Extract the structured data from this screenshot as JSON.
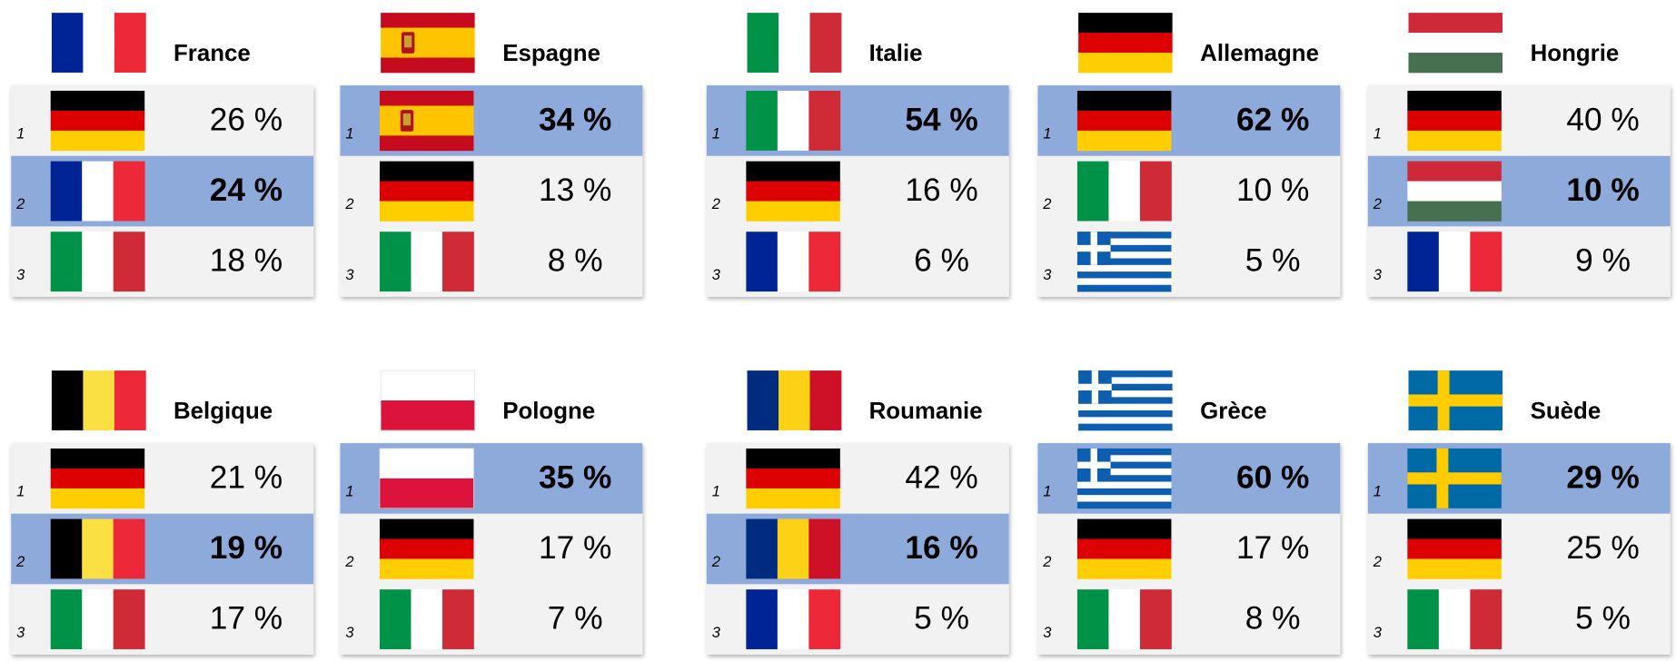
{
  "panels": [
    {
      "title": "France",
      "highlight": 1,
      "rows": [
        {
          "rank": "1",
          "value": "26 %"
        },
        {
          "rank": "2",
          "value": "24 %"
        },
        {
          "rank": "3",
          "value": "18 %"
        }
      ]
    },
    {
      "title": "Espagne",
      "highlight": 0,
      "rows": [
        {
          "rank": "1",
          "value": "34 %"
        },
        {
          "rank": "2",
          "value": "13 %"
        },
        {
          "rank": "3",
          "value": "8 %"
        }
      ]
    },
    {
      "title": "Italie",
      "highlight": 0,
      "rows": [
        {
          "rank": "1",
          "value": "54 %"
        },
        {
          "rank": "2",
          "value": "16 %"
        },
        {
          "rank": "3",
          "value": "6 %"
        }
      ]
    },
    {
      "title": "Allemagne",
      "highlight": 0,
      "rows": [
        {
          "rank": "1",
          "value": "62 %"
        },
        {
          "rank": "2",
          "value": "10 %"
        },
        {
          "rank": "3",
          "value": "5 %"
        }
      ]
    },
    {
      "title": "Hongrie",
      "highlight": 1,
      "rows": [
        {
          "rank": "1",
          "value": "40 %"
        },
        {
          "rank": "2",
          "value": "10 %"
        },
        {
          "rank": "3",
          "value": "9 %"
        }
      ]
    },
    {
      "title": "Belgique",
      "highlight": 1,
      "rows": [
        {
          "rank": "1",
          "value": "21 %"
        },
        {
          "rank": "2",
          "value": "19 %"
        },
        {
          "rank": "3",
          "value": "17 %"
        }
      ]
    },
    {
      "title": "Pologne",
      "highlight": 0,
      "rows": [
        {
          "rank": "1",
          "value": "35 %"
        },
        {
          "rank": "2",
          "value": "17 %"
        },
        {
          "rank": "3",
          "value": "7 %"
        }
      ]
    },
    {
      "title": "Roumanie",
      "highlight": 1,
      "rows": [
        {
          "rank": "1",
          "value": "42 %"
        },
        {
          "rank": "2",
          "value": "16 %"
        },
        {
          "rank": "3",
          "value": "5 %"
        }
      ]
    },
    {
      "title": "Grèce",
      "highlight": 0,
      "rows": [
        {
          "rank": "1",
          "value": "60 %"
        },
        {
          "rank": "2",
          "value": "17 %"
        },
        {
          "rank": "3",
          "value": "8 %"
        }
      ]
    },
    {
      "title": "Suède",
      "highlight": 0,
      "rows": [
        {
          "rank": "1",
          "value": "29 %"
        },
        {
          "rank": "2",
          "value": "25 %"
        },
        {
          "rank": "3",
          "value": "5 %"
        }
      ]
    }
  ]
}
